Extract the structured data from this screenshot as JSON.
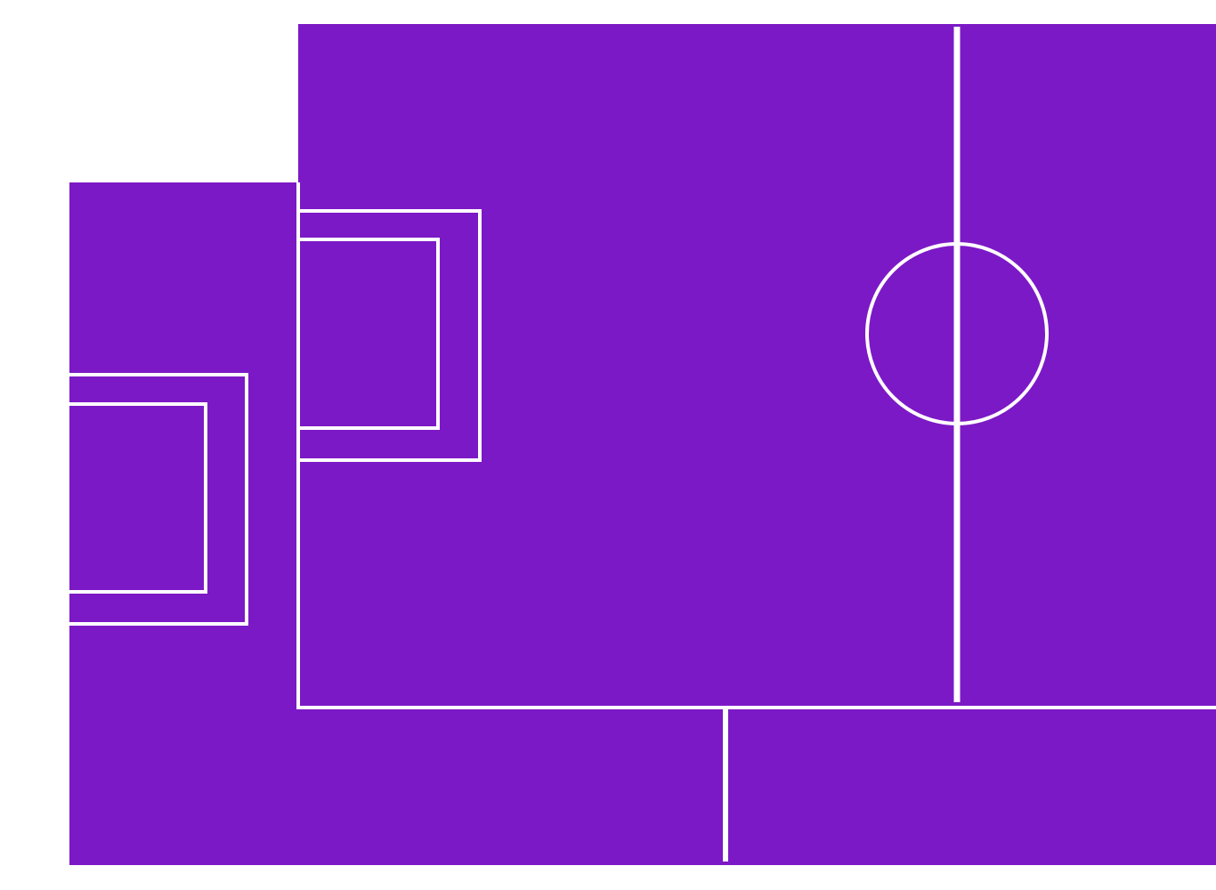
{
  "colors": {
    "background": "#ffffff",
    "pitch_fill": "#7c19c6",
    "line": "#ffffff"
  },
  "pitches": [
    {
      "name": "back-pitch",
      "markings": [
        "halfway-line",
        "goal-area",
        "penalty-area"
      ]
    },
    {
      "name": "front-pitch",
      "markings": [
        "halfway-line",
        "center-circle",
        "goal-area",
        "penalty-area"
      ]
    }
  ]
}
